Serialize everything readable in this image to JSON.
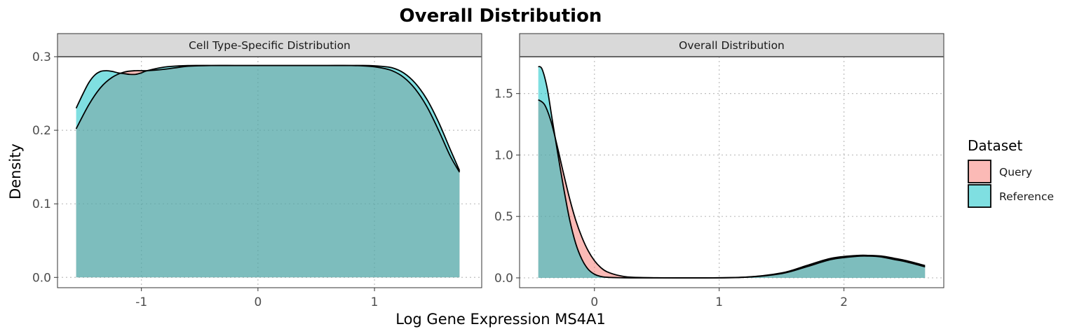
{
  "title": "Overall Distribution",
  "xlabel": "Log Gene Expression MS4A1",
  "ylabel": "Density",
  "legend": {
    "title": "Dataset",
    "placement": "right",
    "items": [
      {
        "label": "Query",
        "color": "#F8766D"
      },
      {
        "label": "Reference",
        "color": "#00BFC4"
      }
    ]
  },
  "chart_data": [
    {
      "type": "area",
      "panel_title": "Cell Type-Specific Distribution",
      "xlim": [
        -1.72,
        1.92
      ],
      "ylim": [
        -0.014,
        0.3
      ],
      "xticks": [
        -1,
        0,
        1
      ],
      "xtick_labels": [
        "-1",
        "0",
        "1"
      ],
      "yticks": [
        0.0,
        0.1,
        0.2,
        0.3
      ],
      "ytick_labels": [
        "0.0",
        "0.1",
        "0.2",
        "0.3"
      ],
      "grid": true,
      "series": [
        {
          "name": "Query",
          "x": [
            -1.56,
            -1.45,
            -1.35,
            -1.25,
            -1.15,
            -1.05,
            -0.95,
            -0.8,
            -0.6,
            -0.4,
            -0.2,
            0.0,
            0.2,
            0.4,
            0.6,
            0.8,
            0.95,
            1.05,
            1.15,
            1.25,
            1.35,
            1.45,
            1.55,
            1.65,
            1.73
          ],
          "y": [
            0.202,
            0.235,
            0.258,
            0.272,
            0.279,
            0.281,
            0.281,
            0.283,
            0.287,
            0.288,
            0.288,
            0.288,
            0.288,
            0.288,
            0.288,
            0.288,
            0.287,
            0.285,
            0.281,
            0.272,
            0.256,
            0.232,
            0.2,
            0.165,
            0.143
          ]
        },
        {
          "name": "Reference",
          "x": [
            -1.56,
            -1.5,
            -1.45,
            -1.4,
            -1.35,
            -1.3,
            -1.25,
            -1.2,
            -1.15,
            -1.1,
            -1.05,
            -1.0,
            -0.95,
            -0.8,
            -0.6,
            -0.4,
            -0.2,
            0.0,
            0.2,
            0.4,
            0.6,
            0.8,
            0.95,
            1.05,
            1.15,
            1.25,
            1.35,
            1.45,
            1.55,
            1.65,
            1.73
          ],
          "y": [
            0.23,
            0.25,
            0.265,
            0.275,
            0.28,
            0.281,
            0.28,
            0.278,
            0.277,
            0.276,
            0.276,
            0.278,
            0.281,
            0.286,
            0.288,
            0.288,
            0.288,
            0.288,
            0.288,
            0.288,
            0.288,
            0.288,
            0.288,
            0.287,
            0.285,
            0.278,
            0.264,
            0.242,
            0.211,
            0.174,
            0.145
          ]
        }
      ]
    },
    {
      "type": "area",
      "panel_title": "Overall Distribution",
      "xlim": [
        -0.6,
        2.8
      ],
      "ylim": [
        -0.08,
        1.8
      ],
      "xticks": [
        0,
        1,
        2
      ],
      "xtick_labels": [
        "0",
        "1",
        "2"
      ],
      "yticks": [
        0.0,
        0.5,
        1.0,
        1.5
      ],
      "ytick_labels": [
        "0.0",
        "0.5",
        "1.0",
        "1.5"
      ],
      "grid": true,
      "series": [
        {
          "name": "Query",
          "x": [
            -0.45,
            -0.4,
            -0.35,
            -0.3,
            -0.25,
            -0.2,
            -0.15,
            -0.1,
            -0.05,
            0.0,
            0.05,
            0.1,
            0.2,
            0.3,
            0.5,
            0.8,
            1.2,
            1.5,
            1.7,
            1.9,
            2.1,
            2.2,
            2.3,
            2.4,
            2.5,
            2.65
          ],
          "y": [
            1.45,
            1.41,
            1.28,
            1.08,
            0.86,
            0.65,
            0.47,
            0.33,
            0.22,
            0.14,
            0.085,
            0.05,
            0.018,
            0.005,
            0.001,
            0.0,
            0.005,
            0.035,
            0.09,
            0.15,
            0.175,
            0.177,
            0.17,
            0.15,
            0.13,
            0.09
          ]
        },
        {
          "name": "Reference",
          "x": [
            -0.45,
            -0.42,
            -0.38,
            -0.34,
            -0.3,
            -0.25,
            -0.2,
            -0.15,
            -0.1,
            -0.05,
            0.0,
            0.05,
            0.1,
            0.2,
            0.3,
            0.5,
            0.8,
            1.2,
            1.5,
            1.7,
            1.9,
            2.1,
            2.2,
            2.3,
            2.4,
            2.5,
            2.65
          ],
          "y": [
            1.72,
            1.7,
            1.55,
            1.3,
            1.05,
            0.75,
            0.48,
            0.28,
            0.15,
            0.07,
            0.03,
            0.012,
            0.005,
            0.001,
            0.0,
            0.0,
            0.0,
            0.005,
            0.04,
            0.1,
            0.16,
            0.182,
            0.183,
            0.178,
            0.16,
            0.14,
            0.1
          ]
        }
      ]
    }
  ]
}
